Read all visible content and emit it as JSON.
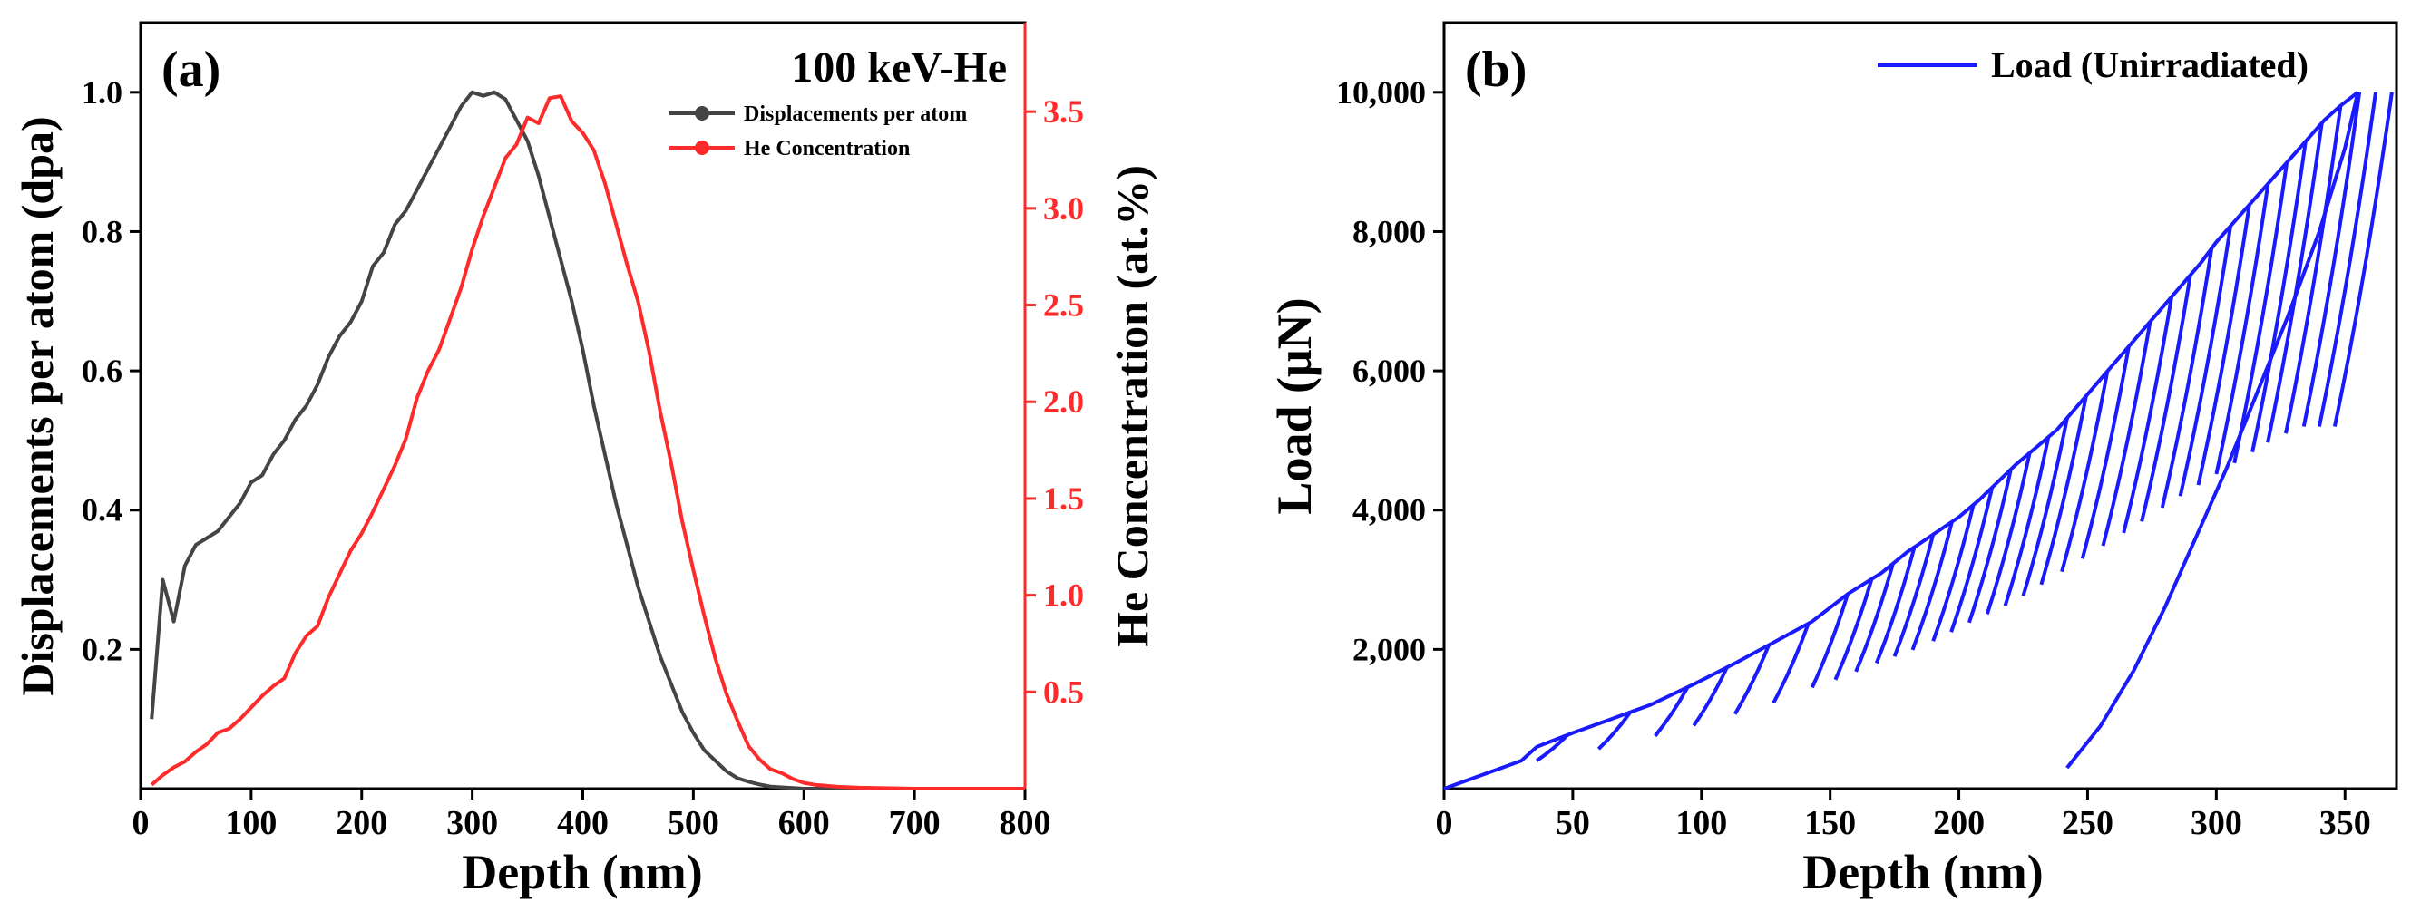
{
  "chart_data": [
    {
      "type": "line",
      "panel_label": "(a)",
      "annotation": "100 keV-He",
      "xlabel": "Depth (nm)",
      "ylabel": "Displacements per atom (dpa)",
      "y2label": "He Concentration (at.%)",
      "xlim": [
        0,
        800
      ],
      "ylim": [
        0,
        1.1
      ],
      "y2lim": [
        0,
        3.96
      ],
      "x_ticks": [
        "0",
        "100",
        "200",
        "300",
        "400",
        "500",
        "600",
        "700",
        "800"
      ],
      "y_ticks": [
        "0.2",
        "0.4",
        "0.6",
        "0.8",
        "1.0"
      ],
      "y2_ticks": [
        "0.5",
        "1.0",
        "1.5",
        "2.0",
        "2.5",
        "3.0",
        "3.5"
      ],
      "legend_position": "top-right",
      "colors": {
        "dpa": "#444444",
        "he": "#ff2a2a"
      },
      "series": [
        {
          "name": "Displacements per atom",
          "axis": "left",
          "x": [
            10,
            20,
            30,
            40,
            50,
            60,
            70,
            80,
            90,
            100,
            110,
            120,
            130,
            140,
            150,
            160,
            170,
            180,
            190,
            200,
            210,
            220,
            230,
            240,
            250,
            260,
            270,
            280,
            290,
            300,
            310,
            320,
            330,
            340,
            350,
            360,
            370,
            380,
            390,
            400,
            410,
            420,
            430,
            440,
            450,
            460,
            470,
            480,
            490,
            500,
            510,
            520,
            530,
            540,
            550,
            560,
            570,
            580,
            590,
            600,
            620,
            650,
            700,
            800
          ],
          "values": [
            0.1,
            0.3,
            0.24,
            0.32,
            0.35,
            0.36,
            0.37,
            0.39,
            0.41,
            0.44,
            0.45,
            0.48,
            0.5,
            0.53,
            0.55,
            0.58,
            0.62,
            0.65,
            0.67,
            0.7,
            0.75,
            0.77,
            0.81,
            0.83,
            0.86,
            0.89,
            0.92,
            0.95,
            0.98,
            1.0,
            0.995,
            1.0,
            0.99,
            0.96,
            0.93,
            0.88,
            0.82,
            0.76,
            0.7,
            0.63,
            0.55,
            0.48,
            0.41,
            0.35,
            0.29,
            0.24,
            0.19,
            0.15,
            0.11,
            0.08,
            0.055,
            0.04,
            0.025,
            0.015,
            0.01,
            0.006,
            0.003,
            0.002,
            0.001,
            0.0,
            0.0,
            0.0,
            0.0,
            0.0
          ]
        },
        {
          "name": "He Concentration",
          "axis": "right",
          "x": [
            10,
            20,
            30,
            40,
            50,
            60,
            70,
            80,
            90,
            100,
            110,
            120,
            130,
            140,
            150,
            160,
            170,
            180,
            190,
            200,
            210,
            220,
            230,
            240,
            250,
            260,
            270,
            280,
            290,
            300,
            310,
            320,
            330,
            340,
            350,
            360,
            370,
            380,
            390,
            400,
            410,
            420,
            430,
            440,
            450,
            460,
            470,
            480,
            490,
            500,
            510,
            520,
            530,
            540,
            550,
            560,
            570,
            580,
            590,
            600,
            610,
            620,
            630,
            650,
            700,
            800
          ],
          "values": [
            0.02,
            0.07,
            0.11,
            0.14,
            0.19,
            0.23,
            0.29,
            0.31,
            0.36,
            0.42,
            0.48,
            0.53,
            0.57,
            0.7,
            0.79,
            0.84,
            0.99,
            1.11,
            1.23,
            1.32,
            1.43,
            1.55,
            1.67,
            1.81,
            2.02,
            2.16,
            2.27,
            2.43,
            2.59,
            2.79,
            2.96,
            3.11,
            3.26,
            3.33,
            3.47,
            3.44,
            3.57,
            3.58,
            3.45,
            3.39,
            3.3,
            3.13,
            2.92,
            2.71,
            2.52,
            2.26,
            1.95,
            1.68,
            1.38,
            1.13,
            0.89,
            0.67,
            0.49,
            0.35,
            0.22,
            0.15,
            0.1,
            0.08,
            0.05,
            0.03,
            0.02,
            0.015,
            0.01,
            0.005,
            0.0,
            0.0
          ]
        }
      ]
    },
    {
      "type": "line",
      "panel_label": "(b)",
      "xlabel": "Depth (nm)",
      "ylabel": "Load (μN)",
      "xlim": [
        0,
        370
      ],
      "ylim": [
        0,
        11000
      ],
      "x_ticks": [
        "0",
        "50",
        "100",
        "150",
        "200",
        "250",
        "300",
        "350"
      ],
      "y_ticks": [
        "2,000",
        "4,000",
        "6,000",
        "8,000",
        "10,000"
      ],
      "legend_position": "top-right",
      "colors": {
        "load": "#1a1aff"
      },
      "series": [
        {
          "name": "Load (Unirradiated)",
          "description_points": {
            "envelope_x": [
              0,
              15,
              30,
              36,
              50,
              65,
              80,
              97,
              113,
              128,
              143,
              157,
              170,
              180,
              190,
              200,
              208,
              215,
              222,
              230,
              238,
              245,
              252,
              259,
              266,
              273,
              280,
              287,
              294,
              300,
              306,
              312,
              318,
              324,
              330,
              336,
              342,
              348,
              355
            ],
            "envelope_y": [
              0,
              200,
              400,
              600,
              800,
              1000,
              1200,
              1500,
              1800,
              2100,
              2400,
              2800,
              3100,
              3400,
              3650,
              3900,
              4150,
              4400,
              4650,
              4900,
              5150,
              5450,
              5750,
              6050,
              6350,
              6650,
              6950,
              7250,
              7550,
              7850,
              8100,
              8350,
              8600,
              8850,
              9100,
              9350,
              9600,
              9800,
              10000
            ],
            "unload_start_x": [
              36,
              60,
              82,
              97,
              113,
              128,
              143,
              152,
              160,
              168,
              175,
              182,
              190,
              197,
              204,
              211,
              218,
              225,
              232,
              240,
              248,
              256,
              264,
              271,
              279,
              286,
              293,
              300,
              307,
              314,
              320,
              327,
              334,
              340,
              346
            ],
            "final_unload_x": [
              242,
              255,
              268,
              280,
              292,
              304,
              316,
              328,
              340,
              350,
              355
            ],
            "final_unload_y": [
              300,
              900,
              1700,
              2600,
              3600,
              4600,
              5700,
              6800,
              8000,
              9200,
              10000
            ]
          }
        }
      ]
    }
  ]
}
